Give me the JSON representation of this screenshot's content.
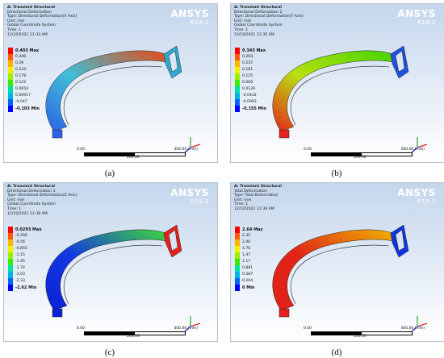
{
  "product": {
    "name": "ANSYS",
    "version": "R19.2"
  },
  "scale": {
    "start": "0.00",
    "end": "400.00 (mm)",
    "mid": "200.00"
  },
  "panels": [
    {
      "caption": "(a)",
      "header": [
        "A: Transient Structural",
        "Directional Deformation",
        "Type: Directional Deformation(X Axis)",
        "Unit: mm",
        "Global Coordinate System",
        "Time: 1",
        "12/10/2021 11:33 AM"
      ],
      "legend": {
        "labels": [
          "0.403 Max",
          "0.346",
          "0.29",
          "0.234",
          "0.178",
          "0.122",
          "0.0654",
          "0.00917",
          "-0.047",
          "-0.103 Min"
        ],
        "colors": [
          "#ff0000",
          "#ff5b00",
          "#ffb400",
          "#f0f000",
          "#9af000",
          "#36ee00",
          "#00e0a4",
          "#00b4e6",
          "#0064ff",
          "#0000ff"
        ]
      },
      "colors": {
        "arc_mid": "#3fbfd6",
        "arc_top": "#e84a14",
        "arc_bottom": "#2c62e6",
        "bracket": "#2fa8d0"
      }
    },
    {
      "caption": "(b)",
      "header": [
        "A: Transient Structural",
        "Directional Deformation 2",
        "Type: Directional Deformation(Y Axis)",
        "Unit: mm",
        "Global Coordinate System",
        "Time: 1",
        "12/10/2021 11:35 AM"
      ],
      "legend": {
        "labels": [
          "0.343 Max",
          "0.293",
          "0.237",
          "0.181",
          "0.125",
          "0.069",
          "0.0129",
          "-0.0432",
          "-0.0993",
          "-0.155 Min"
        ],
        "colors": [
          "#ff0000",
          "#ff5b00",
          "#ffb400",
          "#f0f000",
          "#9af000",
          "#36ee00",
          "#00e0a4",
          "#00b4e6",
          "#0064ff",
          "#0000ff"
        ]
      },
      "colors": {
        "arc_mid": "#b8e010",
        "arc_top": "#46d400",
        "arc_bottom": "#e6231c",
        "bracket": "#1f50e0"
      }
    },
    {
      "caption": "(c)",
      "header": [
        "A: Transient Structural",
        "Directional Deformation 3",
        "Type: Directional Deformation(Z Axis)",
        "Unit: mm",
        "Global Coordinate System",
        "Time: 1",
        "12/10/2021 11:38 AM"
      ],
      "legend": {
        "labels": [
          "0.0293 Max",
          "-0.266",
          "-0.56",
          "-0.855",
          "-1.15",
          "-1.45",
          "-1.74",
          "-2.03",
          "-2.33",
          "-2.62 Min"
        ],
        "colors": [
          "#ff0000",
          "#ff5b00",
          "#ffb400",
          "#f0f000",
          "#9af000",
          "#36ee00",
          "#00e0a4",
          "#00b4e6",
          "#0064ff",
          "#0000ff"
        ]
      },
      "colors": {
        "arc_mid": "#1438e0",
        "arc_top": "#3fd83a",
        "arc_bottom": "#0a22d8",
        "bracket": "#e8201a"
      }
    },
    {
      "caption": "(d)",
      "header": [
        "A: Transient Structural",
        "Total Deformation",
        "Type: Total Deformation",
        "Unit: mm",
        "Time: 1",
        "12/10/2021 11:39 AM"
      ],
      "legend": {
        "labels": [
          "2.64 Max",
          "2.35",
          "2.06",
          "1.76",
          "1.47",
          "1.17",
          "0.881",
          "0.587",
          "0.294",
          "0 Min"
        ],
        "colors": [
          "#ff0000",
          "#ff5b00",
          "#ffb400",
          "#f0f000",
          "#9af000",
          "#36ee00",
          "#00e0a4",
          "#00b4e6",
          "#0064ff",
          "#0000ff"
        ]
      },
      "colors": {
        "arc_mid": "#e02418",
        "arc_top": "#f0b400",
        "arc_bottom": "#e3221a",
        "bracket": "#1034e0"
      }
    }
  ]
}
